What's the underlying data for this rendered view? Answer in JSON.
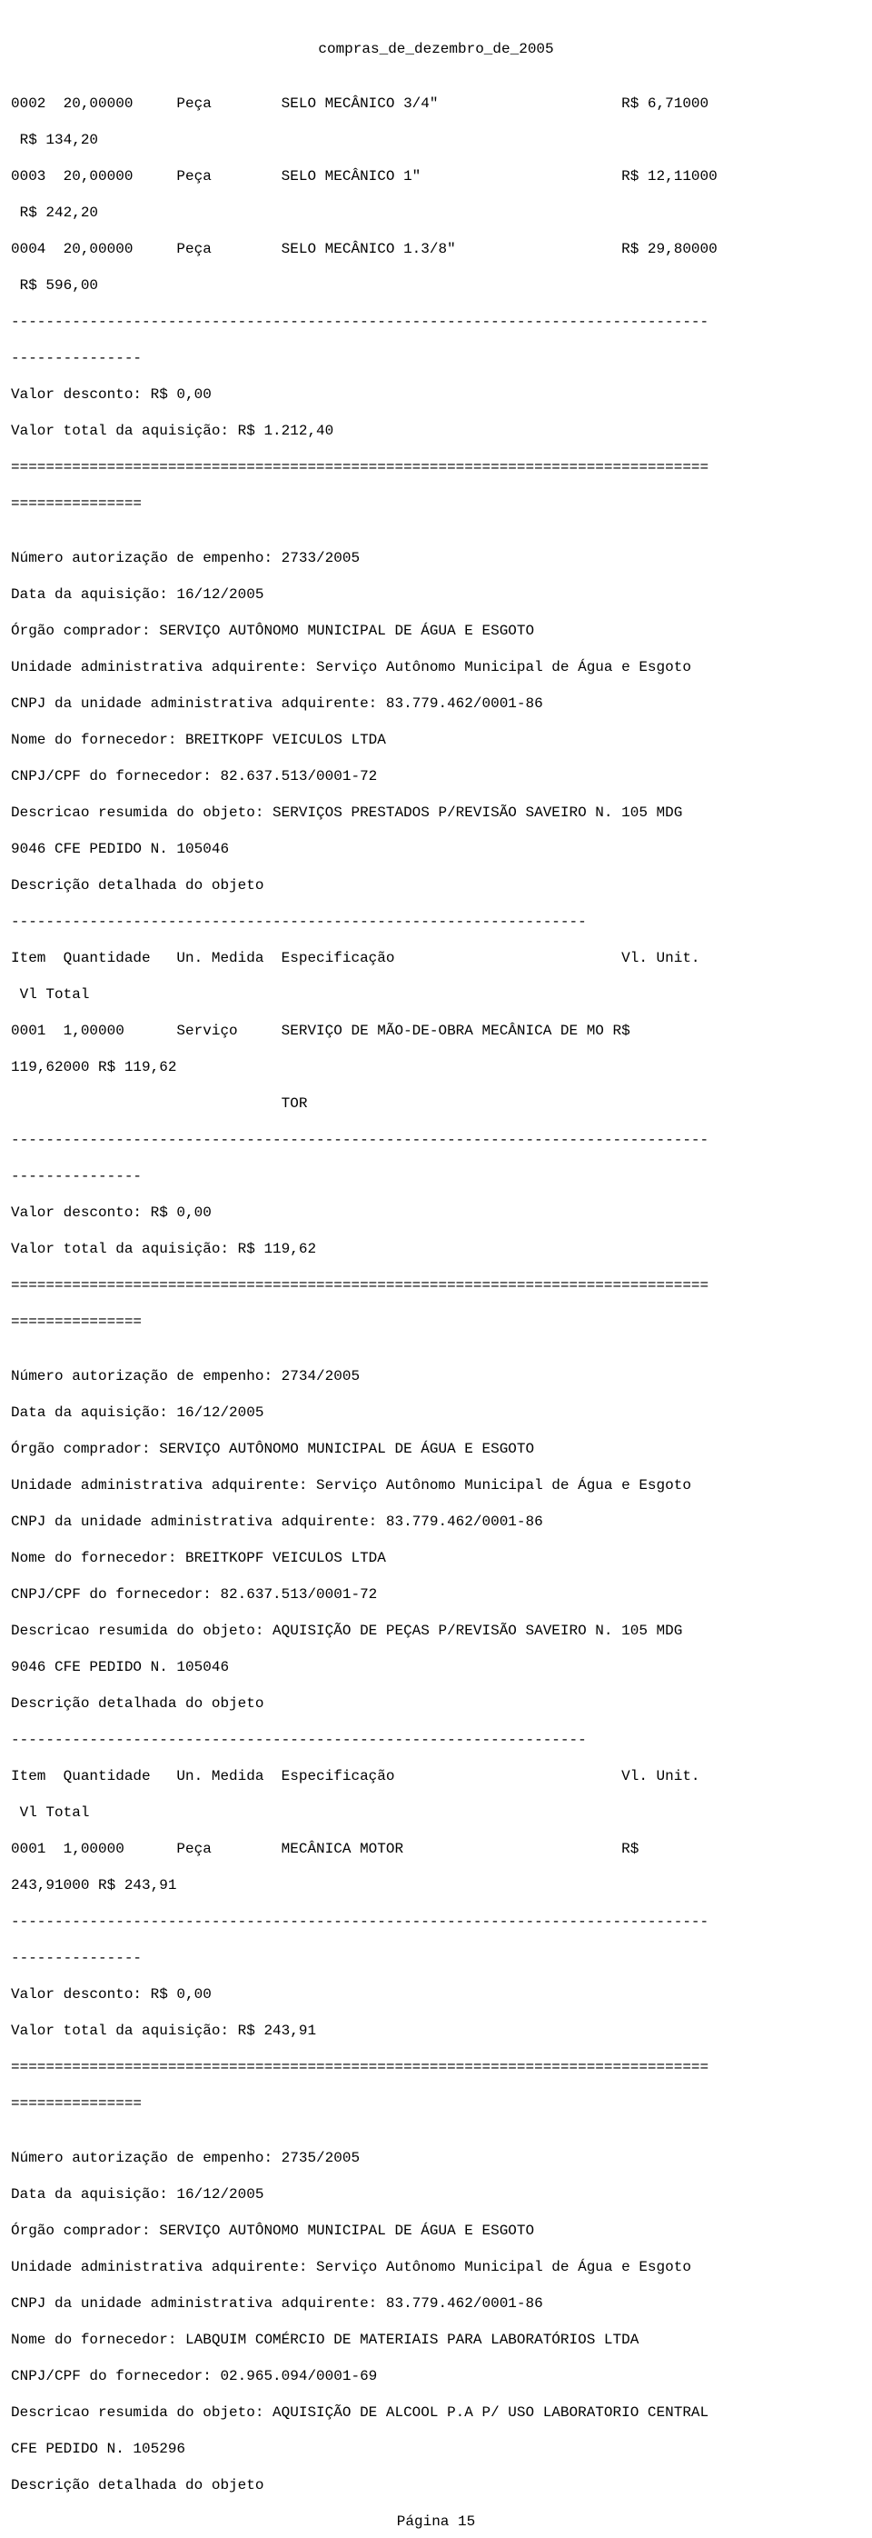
{
  "title": "compras_de_dezembro_de_2005",
  "page_footer": "Página 15",
  "block0": {
    "items": [
      {
        "num": "0002",
        "qty": "20,00000",
        "un": "Peça",
        "spec": "SELO MECÂNICO 3/4\"",
        "unit": "R$ 6,71000",
        "total": " R$ 134,20"
      },
      {
        "num": "0003",
        "qty": "20,00000",
        "un": "Peça",
        "spec": "SELO MECÂNICO 1\"",
        "unit": "R$ 12,11000",
        "total": " R$ 242,20"
      },
      {
        "num": "0004",
        "qty": "20,00000",
        "un": "Peça",
        "spec": "SELO MECÂNICO 1.3/8\"",
        "unit": "R$ 29,80000",
        "total": " R$ 596,00"
      }
    ],
    "desconto": "Valor desconto: R$ 0,00",
    "total": "Valor total da aquisição: R$ 1.212,40"
  },
  "block1": {
    "empenho": "Número autorização de empenho: 2733/2005",
    "data": "Data da aquisição: 16/12/2005",
    "orgao": "Órgão comprador: SERVIÇO AUTÔNOMO MUNICIPAL DE ÁGUA E ESGOTO",
    "unidade": "Unidade administrativa adquirente: Serviço Autônomo Municipal de Água e Esgoto",
    "cnpj_unidade": "CNPJ da unidade administrativa adquirente: 83.779.462/0001-86",
    "fornecedor": "Nome do fornecedor: BREITKOPF VEICULOS LTDA",
    "cnpj_forn": "CNPJ/CPF do fornecedor: 82.637.513/0001-72",
    "desc_res1": "Descricao resumida do objeto: SERVIÇOS PRESTADOS P/REVISÃO SAVEIRO N. 105 MDG",
    "desc_res2": "9046 CFE PEDIDO N. 105046",
    "desc_det": "Descrição detalhada do objeto",
    "header1": "Item  Quantidade   Un. Medida  Especificação                          Vl. Unit.",
    "header2": " Vl Total",
    "item_l1": "0001  1,00000      Serviço     SERVIÇO DE MÃO-DE-OBRA MECÂNICA DE MO R$",
    "item_l2": "119,62000 R$ 119,62",
    "item_l3": "                               TOR",
    "desconto": "Valor desconto: R$ 0,00",
    "total": "Valor total da aquisição: R$ 119,62"
  },
  "block2": {
    "empenho": "Número autorização de empenho: 2734/2005",
    "data": "Data da aquisição: 16/12/2005",
    "orgao": "Órgão comprador: SERVIÇO AUTÔNOMO MUNICIPAL DE ÁGUA E ESGOTO",
    "unidade": "Unidade administrativa adquirente: Serviço Autônomo Municipal de Água e Esgoto",
    "cnpj_unidade": "CNPJ da unidade administrativa adquirente: 83.779.462/0001-86",
    "fornecedor": "Nome do fornecedor: BREITKOPF VEICULOS LTDA",
    "cnpj_forn": "CNPJ/CPF do fornecedor: 82.637.513/0001-72",
    "desc_res1": "Descricao resumida do objeto: AQUISIÇÃO DE PEÇAS P/REVISÃO SAVEIRO N. 105 MDG",
    "desc_res2": "9046 CFE PEDIDO N. 105046",
    "desc_det": "Descrição detalhada do objeto",
    "header1": "Item  Quantidade   Un. Medida  Especificação                          Vl. Unit.",
    "header2": " Vl Total",
    "item_l1": "0001  1,00000      Peça        MECÂNICA MOTOR                         R$",
    "item_l2": "243,91000 R$ 243,91",
    "desconto": "Valor desconto: R$ 0,00",
    "total": "Valor total da aquisição: R$ 243,91"
  },
  "block3": {
    "empenho": "Número autorização de empenho: 2735/2005",
    "data": "Data da aquisição: 16/12/2005",
    "orgao": "Órgão comprador: SERVIÇO AUTÔNOMO MUNICIPAL DE ÁGUA E ESGOTO",
    "unidade": "Unidade administrativa adquirente: Serviço Autônomo Municipal de Água e Esgoto",
    "cnpj_unidade": "CNPJ da unidade administrativa adquirente: 83.779.462/0001-86",
    "fornecedor": "Nome do fornecedor: LABQUIM COMÉRCIO DE MATERIAIS PARA LABORATÓRIOS LTDA",
    "cnpj_forn": "CNPJ/CPF do fornecedor: 02.965.094/0001-69",
    "desc_res1": "Descricao resumida do objeto: AQUISIÇÃO DE ALCOOL P.A P/ USO LABORATORIO CENTRAL",
    "desc_res2": "CFE PEDIDO N. 105296",
    "desc_det": "Descrição detalhada do objeto"
  },
  "sep": {
    "dash_long": "--------------------------------------------------------------------------------",
    "dash_short": "---------------",
    "dash_mid": "------------------------------------------------------------------",
    "eq_long": "================================================================================",
    "eq_short": "==============="
  }
}
